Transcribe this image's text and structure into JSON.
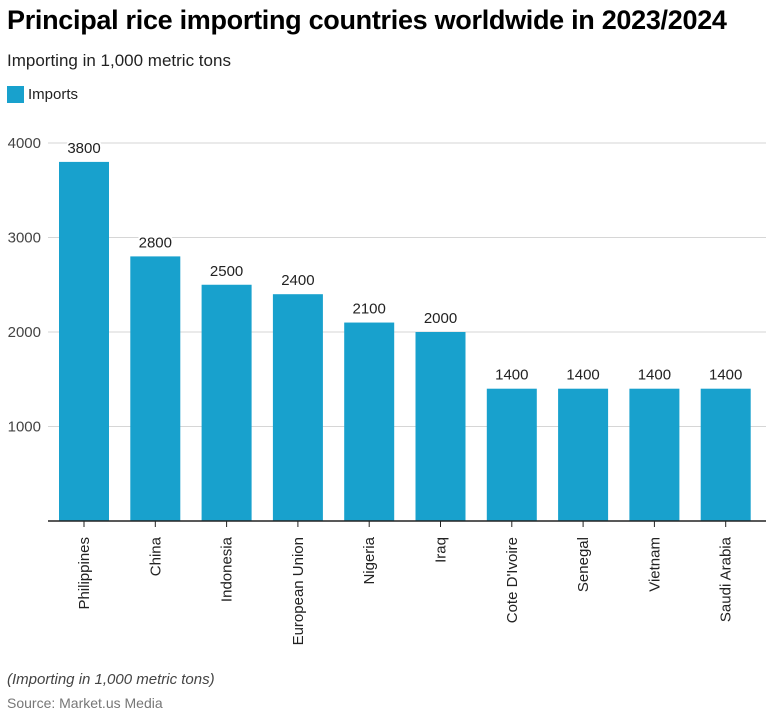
{
  "header": {
    "title": "Principal rice importing countries worldwide in 2023/2024",
    "subtitle": "Importing in 1,000 metric tons"
  },
  "footer": {
    "note": "(Importing in 1,000 metric tons)",
    "source": "Source: Market.us Media"
  },
  "chart_data": {
    "type": "bar",
    "title": "Principal rice importing countries worldwide in 2023/2024",
    "subtitle": "Importing in 1,000 metric tons",
    "xlabel": "",
    "ylabel": "",
    "categories": [
      "Philippines",
      "China",
      "Indonesia",
      "European Union",
      "Nigeria",
      "Iraq",
      "Cote D'Ivoire",
      "Senegal",
      "Vietnam",
      "Saudi Arabia"
    ],
    "series": [
      {
        "name": "Imports",
        "color": "#18a1cd",
        "values": [
          3800,
          2800,
          2500,
          2400,
          2100,
          2000,
          1400,
          1400,
          1400,
          1400
        ]
      }
    ],
    "ylim": [
      0,
      4000
    ],
    "yticks": [
      1000,
      2000,
      3000,
      4000
    ],
    "grid": true,
    "legend": "top-left",
    "data_labels": true
  }
}
